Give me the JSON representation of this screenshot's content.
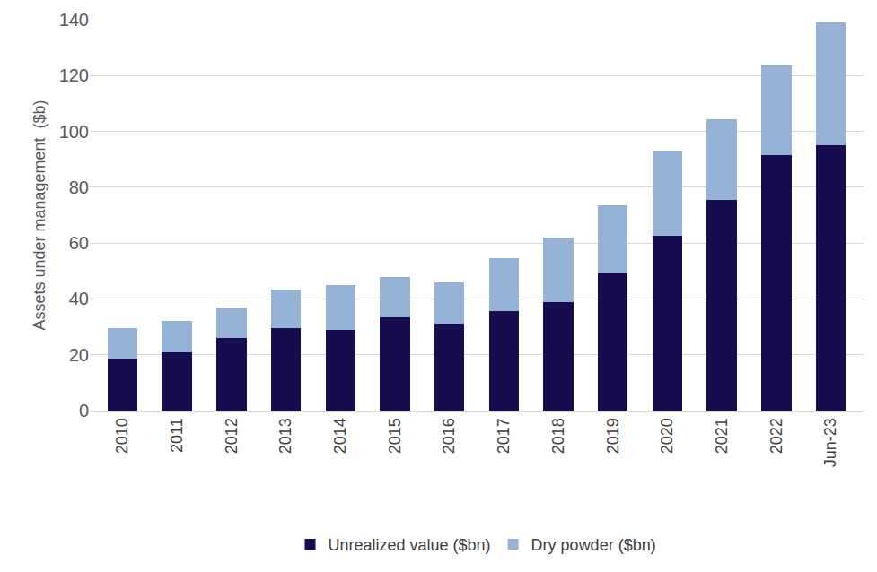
{
  "chart_data": {
    "type": "bar",
    "stacked": true,
    "grid": true,
    "legend": "bottom",
    "y_label": "Assets under management  ($b)",
    "categories": [
      "2010",
      "2011",
      "2012",
      "2013",
      "2014",
      "2015",
      "2016",
      "2017",
      "2018",
      "2019",
      "2020",
      "2021",
      "2022",
      "Jun-23"
    ],
    "series": [
      {
        "name": "Unrealized value ($bn)",
        "color": "#170c4f",
        "values": [
          18.5,
          21,
          26,
          29.5,
          29,
          33.5,
          31,
          35.5,
          39,
          49.5,
          62.5,
          75.5,
          91.5,
          95
        ]
      },
      {
        "name": "Dry powder ($bn)",
        "color": "#95b3d7",
        "values": [
          11,
          11,
          11,
          14,
          16,
          14.5,
          15,
          19,
          23,
          24,
          30.5,
          29,
          32,
          44
        ]
      }
    ],
    "ylim": [
      0,
      140
    ],
    "yticks": [
      0,
      20,
      40,
      60,
      80,
      100,
      120,
      140
    ]
  }
}
